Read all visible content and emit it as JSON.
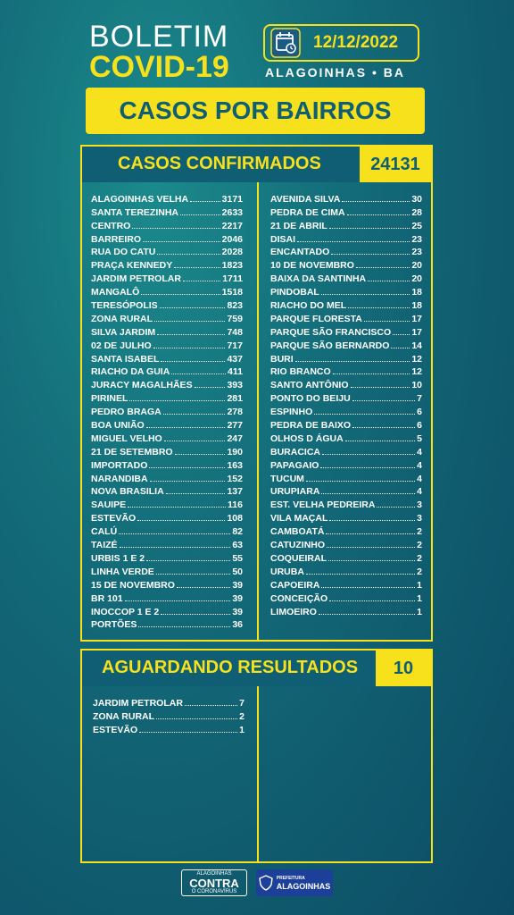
{
  "header": {
    "title_line1": "BOLETIM",
    "title_line2": "COVID-19",
    "date": "12/12/2022",
    "city": "ALAGOINHAS • BA",
    "banner": "CASOS POR BAIRROS"
  },
  "confirmed": {
    "title": "CASOS CONFIRMADOS",
    "total": "24131",
    "left": [
      {
        "name": "ALAGOINHAS VELHA",
        "value": "3171"
      },
      {
        "name": "SANTA TEREZINHA",
        "value": "2633"
      },
      {
        "name": "CENTRO",
        "value": "2217"
      },
      {
        "name": "BARREIRO",
        "value": "2046"
      },
      {
        "name": "RUA DO CATU",
        "value": "2028"
      },
      {
        "name": "PRAÇA KENNEDY",
        "value": "1823"
      },
      {
        "name": "JARDIM PETROLAR",
        "value": "1711"
      },
      {
        "name": "MANGALÔ",
        "value": "1518"
      },
      {
        "name": "TERESÓPOLIS",
        "value": "823"
      },
      {
        "name": "ZONA RURAL",
        "value": "759"
      },
      {
        "name": "SILVA JARDIM",
        "value": "748"
      },
      {
        "name": "02 DE JULHO",
        "value": "717"
      },
      {
        "name": "SANTA ISABEL",
        "value": "437"
      },
      {
        "name": "RIACHO DA GUIA",
        "value": "411"
      },
      {
        "name": "JURACY MAGALHÃES",
        "value": "393"
      },
      {
        "name": "PIRINEL",
        "value": "281"
      },
      {
        "name": "PEDRO BRAGA",
        "value": "278"
      },
      {
        "name": "BOA UNIÃO",
        "value": "277"
      },
      {
        "name": "MIGUEL VELHO",
        "value": "247"
      },
      {
        "name": "21 DE SETEMBRO",
        "value": "190"
      },
      {
        "name": "IMPORTADO",
        "value": "163"
      },
      {
        "name": "NARANDIBA",
        "value": "152"
      },
      {
        "name": "NOVA BRASILIA",
        "value": "137"
      },
      {
        "name": "SAUIPE",
        "value": "116"
      },
      {
        "name": "ESTEVÃO",
        "value": "108"
      },
      {
        "name": "CALÚ",
        "value": "82"
      },
      {
        "name": "TAIZÉ",
        "value": "63"
      },
      {
        "name": "URBIS 1 E 2",
        "value": "55"
      },
      {
        "name": "LINHA VERDE",
        "value": "50"
      },
      {
        "name": "15 DE NOVEMBRO",
        "value": "39"
      },
      {
        "name": "BR 101",
        "value": "39"
      },
      {
        "name": "INOCCOP 1 E 2",
        "value": "39"
      },
      {
        "name": "PORTÕES",
        "value": "36"
      }
    ],
    "right": [
      {
        "name": "AVENIDA SILVA",
        "value": "30"
      },
      {
        "name": "PEDRA DE CIMA",
        "value": "28"
      },
      {
        "name": "21 DE ABRIL",
        "value": "25"
      },
      {
        "name": "DISAI",
        "value": "23"
      },
      {
        "name": "ENCANTADO",
        "value": "23"
      },
      {
        "name": "10 DE NOVEMBRO",
        "value": "20"
      },
      {
        "name": "BAIXA DA SANTINHA",
        "value": "20"
      },
      {
        "name": "PINDOBAL",
        "value": "18"
      },
      {
        "name": "RIACHO DO MEL",
        "value": "18"
      },
      {
        "name": "PARQUE FLORESTA",
        "value": "17"
      },
      {
        "name": "PARQUE SÃO FRANCISCO",
        "value": "17"
      },
      {
        "name": "PARQUE SÃO BERNARDO",
        "value": "14"
      },
      {
        "name": "BURI",
        "value": "12"
      },
      {
        "name": "RIO BRANCO",
        "value": "12"
      },
      {
        "name": "SANTO ANTÔNIO",
        "value": "10"
      },
      {
        "name": "PONTO DO BEIJU",
        "value": "7"
      },
      {
        "name": "ESPINHO",
        "value": "6"
      },
      {
        "name": "PEDRA DE BAIXO",
        "value": "6"
      },
      {
        "name": "OLHOS D ÁGUA",
        "value": "5"
      },
      {
        "name": "BURACICA",
        "value": "4"
      },
      {
        "name": "PAPAGAIO",
        "value": "4"
      },
      {
        "name": "TUCUM",
        "value": "4"
      },
      {
        "name": "URUPIARA",
        "value": "4"
      },
      {
        "name": "EST. VELHA PEDREIRA",
        "value": "3"
      },
      {
        "name": "VILA MAÇAL",
        "value": "3"
      },
      {
        "name": "CAMBOATÁ",
        "value": "2"
      },
      {
        "name": "CATUZINHO",
        "value": "2"
      },
      {
        "name": "COQUEIRAL",
        "value": "2"
      },
      {
        "name": "URUBA",
        "value": "2"
      },
      {
        "name": "CAPOEIRA",
        "value": "1"
      },
      {
        "name": "CONCEIÇÃO",
        "value": "1"
      },
      {
        "name": "LIMOEIRO",
        "value": "1"
      }
    ]
  },
  "awaiting": {
    "title": "AGUARDANDO RESULTADOS",
    "total": "10",
    "left": [
      {
        "name": "JARDIM PETROLAR",
        "value": "7"
      },
      {
        "name": "ZONA RURAL",
        "value": "2"
      },
      {
        "name": "ESTEVÃO",
        "value": "1"
      }
    ]
  },
  "footer": {
    "logo1_top": "ALAGOINHAS",
    "logo1_main": "CONTRA",
    "logo1_bottom": "O CORONAVÍRUS",
    "logo2_top": "PREFEITURA",
    "logo2_main": "ALAGOINHAS"
  },
  "colors": {
    "accent": "#f6e11c",
    "header_bg": "#0f5e73",
    "background": "#136a78"
  }
}
